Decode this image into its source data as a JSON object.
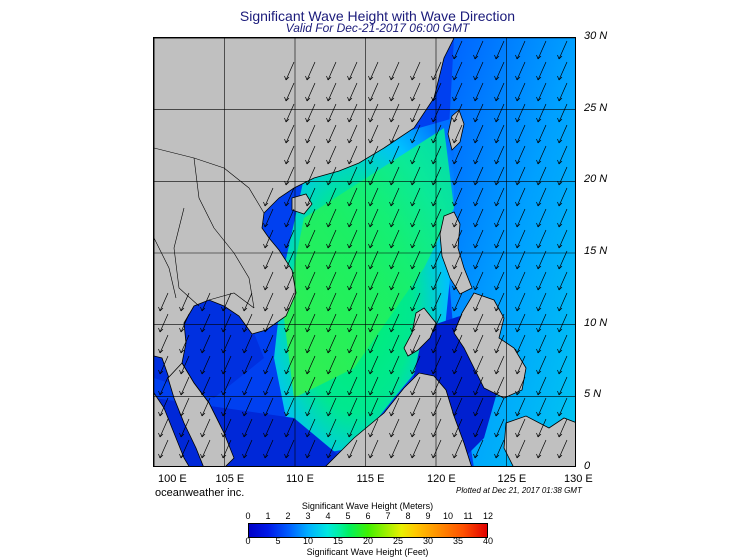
{
  "header": {
    "title": "Significant Wave Height with Wave Direction",
    "subtitle": "Valid For Dec-21-2017 06:00 GMT"
  },
  "map": {
    "region": "South China Sea",
    "lon_range": [
      100,
      130
    ],
    "lat_range": [
      0,
      30
    ],
    "lat_labels": [
      "30 N",
      "25 N",
      "20 N",
      "15 N",
      "10 N",
      "5 N",
      "0"
    ],
    "lon_labels": [
      "100 E",
      "105 E",
      "110 E",
      "115 E",
      "120 E",
      "125 E",
      "130 E"
    ],
    "land_color": "#c0c0c0",
    "border_color": "#000000",
    "wave_direction": "toward south-west",
    "grid": true
  },
  "footer": {
    "credit": "oceanweather inc.",
    "plotted": "Plotted at Dec 21, 2017 01:38 GMT"
  },
  "colorbar": {
    "meters_title": "Significant Wave Height (Meters)",
    "meters_ticks": [
      "0",
      "1",
      "2",
      "3",
      "4",
      "5",
      "6",
      "7",
      "8",
      "9",
      "10",
      "11",
      "12"
    ],
    "feet_title": "Significant Wave Height (Feet)",
    "feet_ticks": [
      "0",
      "5",
      "10",
      "15",
      "20",
      "25",
      "30",
      "35",
      "40"
    ],
    "colors": [
      "#0000c8",
      "#0060ff",
      "#00b0ff",
      "#00e8e0",
      "#00f060",
      "#40f000",
      "#a0f000",
      "#e8f000",
      "#ffc800",
      "#ff8c00",
      "#ff5000",
      "#e00000"
    ]
  }
}
